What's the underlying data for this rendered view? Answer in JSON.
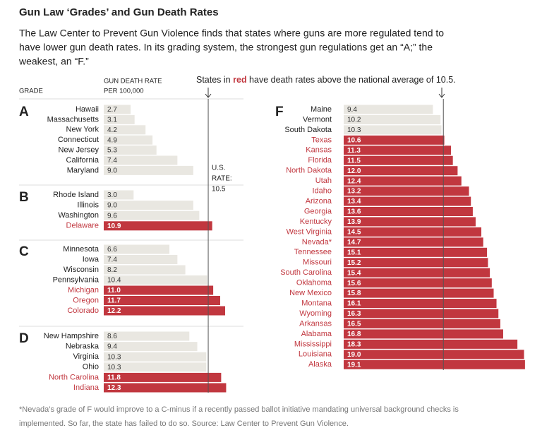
{
  "chart_data": {
    "type": "bar",
    "title": "Gun Law ‘Grades’ and Gun Death Rates",
    "subtitle": [
      "The Law Center to Prevent Gun Violence finds that states where guns are more regulated tend to",
      "have lower gun death rates. In its grading system, the strongest gun regulations get an “A;” the",
      "weakest, an “F.”"
    ],
    "value_header": [
      "GUN DEATH RATE",
      "PER 100,000"
    ],
    "group_header": "GRADE",
    "annotation": [
      "States in ",
      "red",
      " have death rates above the national average of 10.5."
    ],
    "reference": 10.5,
    "reference_label": [
      "U.S.",
      "RATE:"
    ],
    "color": "#e9e7e1",
    "highlight_color": "#c1373f",
    "groups": [
      {
        "name": "A",
        "categories": [
          "Hawaii",
          "Massachusetts",
          "New York",
          "Connecticut",
          "New Jersey",
          "California",
          "Maryland"
        ],
        "values": [
          2.7,
          3.1,
          4.2,
          4.9,
          5.3,
          7.4,
          9.0
        ],
        "value_labels": [
          "2.7",
          "3.1",
          "4.2",
          "4.9",
          "5.3",
          "7.4",
          "9.0"
        ]
      },
      {
        "name": "B",
        "categories": [
          "Rhode Island",
          "Illinois",
          "Washington",
          "Delaware"
        ],
        "values": [
          3.0,
          9.0,
          9.6,
          10.9
        ],
        "value_labels": [
          "3.0",
          "9.0",
          "9.6",
          "10.9"
        ]
      },
      {
        "name": "C",
        "categories": [
          "Minnesota",
          "Iowa",
          "Wisconsin",
          "Pennsylvania",
          "Michigan",
          "Oregon",
          "Colorado"
        ],
        "values": [
          6.6,
          7.4,
          8.2,
          10.4,
          11.0,
          11.7,
          12.2
        ],
        "value_labels": [
          "6.6",
          "7.4",
          "8.2",
          "10.4",
          "11.0",
          "11.7",
          "12.2"
        ]
      },
      {
        "name": "D",
        "categories": [
          "New Hampshire",
          "Nebraska",
          "Virginia",
          "Ohio",
          "North Carolina",
          "Indiana"
        ],
        "values": [
          8.6,
          9.4,
          10.3,
          10.3,
          11.8,
          12.3
        ],
        "value_labels": [
          "8.6",
          "9.4",
          "10.3",
          "10.3",
          "11.8",
          "12.3"
        ]
      },
      {
        "name": "F",
        "categories": [
          "Maine",
          "Vermont",
          "South Dakota",
          "Texas",
          "Kansas",
          "Florida",
          "North Dakota",
          "Utah",
          "Idaho",
          "Arizona",
          "Georgia",
          "Kentucky",
          "West Virginia",
          "Nevada*",
          "Tennessee",
          "Missouri",
          "South Carolina",
          "Oklahoma",
          "New Mexico",
          "Montana",
          "Wyoming",
          "Arkansas",
          "Alabama",
          "Mississippi",
          "Louisiana",
          "Alaska"
        ],
        "values": [
          9.4,
          10.2,
          10.3,
          10.6,
          11.3,
          11.5,
          12.0,
          12.4,
          13.2,
          13.4,
          13.6,
          13.9,
          14.5,
          14.7,
          15.1,
          15.2,
          15.4,
          15.6,
          15.8,
          16.1,
          16.3,
          16.5,
          16.8,
          18.3,
          19.0,
          19.1
        ],
        "value_labels": [
          "9.4",
          "10.2",
          "10.3",
          "10.6",
          "11.3",
          "11.5",
          "12.0",
          "12.4",
          "13.2",
          "13.4",
          "13.6",
          "13.9",
          "14.5",
          "14.7",
          "15.1",
          "15.2",
          "15.4",
          "15.6",
          "15.8",
          "16.1",
          "16.3",
          "16.5",
          "16.8",
          "18.3",
          "19.0",
          "19.1"
        ]
      }
    ],
    "footnote": [
      "*Nevada’s grade of F would improve to a C-minus if a recently passed ballot initiative mandating universal background checks is",
      "implemented. So far, the state has failed to do so. Source: Law Center to Prevent Gun Violence."
    ]
  }
}
